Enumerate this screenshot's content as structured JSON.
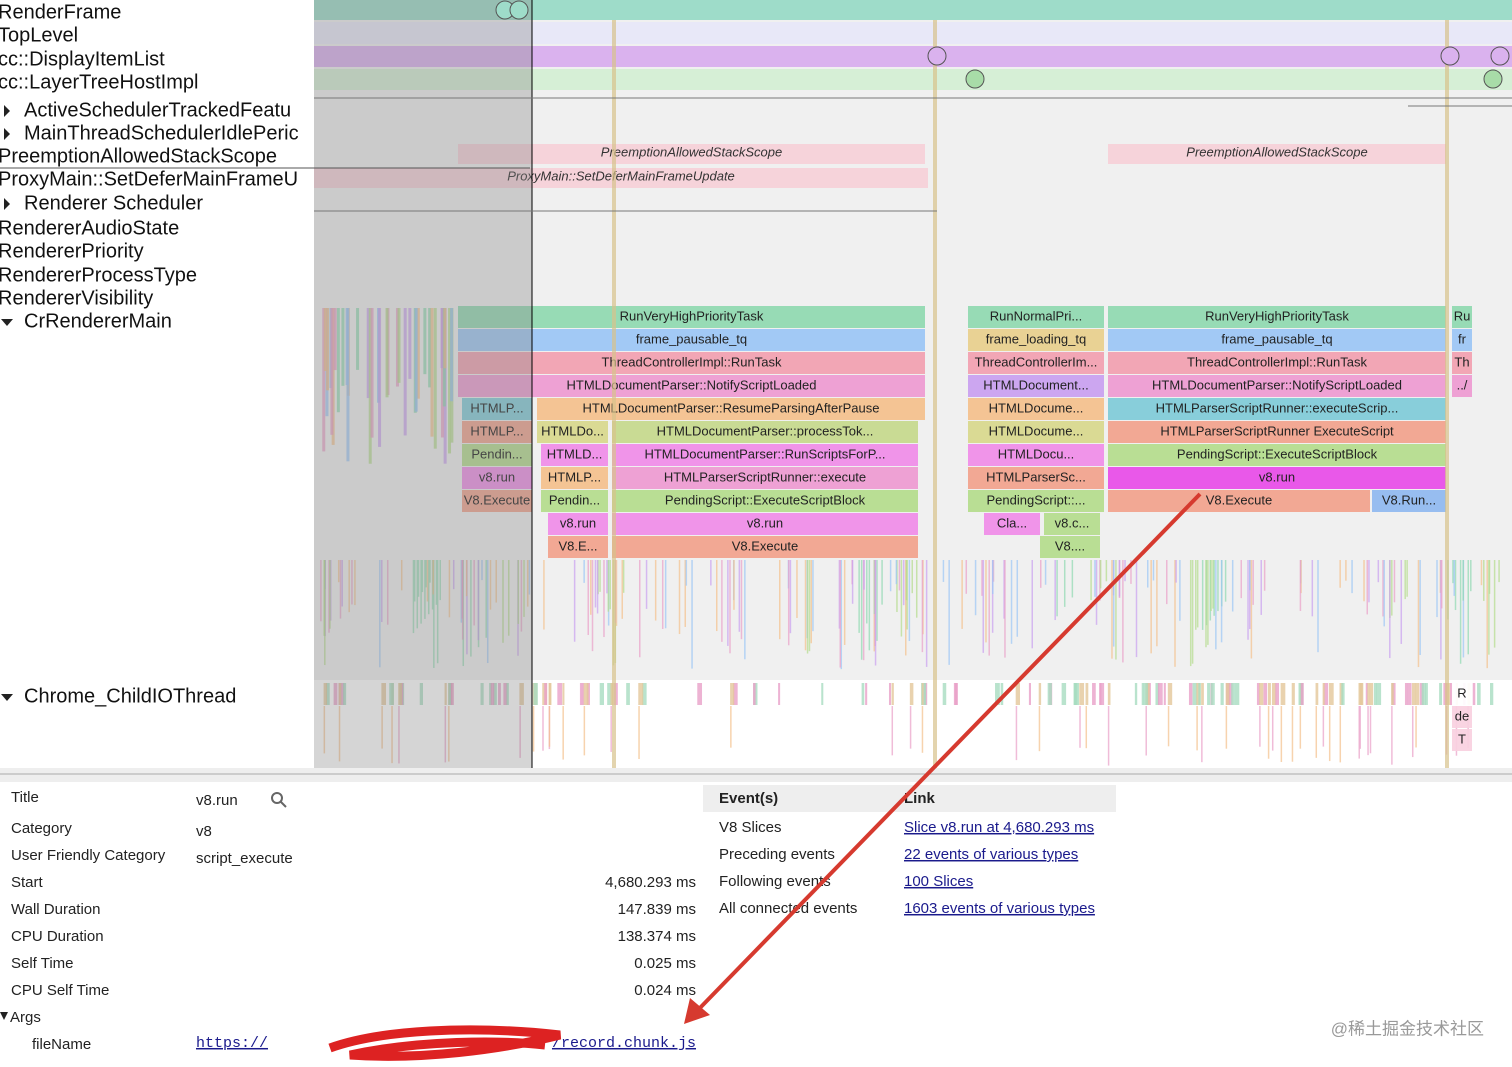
{
  "tracks": [
    "RenderFrame",
    "TopLevel",
    "cc::DisplayItemList",
    "cc::LayerTreeHostImpl",
    "ActiveSchedulerTrackedFeatu",
    "MainThreadSchedulerIdlePeric",
    "PreemptionAllowedStackScope",
    "ProxyMain::SetDeferMainFrameU",
    "Renderer Scheduler",
    "RendererAudioState",
    "RendererPriority",
    "RendererProcessType",
    "RendererVisibility",
    "CrRendererMain",
    "Chrome_ChildIOThread"
  ],
  "async_slices": [
    "PreemptionAllowedStackScope",
    "PreemptionAllowedStackScope",
    "ProxyMain::SetDeferMainFrameUpdate"
  ],
  "slices": [
    "RunVeryHighPriorityTask",
    "RunNormalPri...",
    "RunVeryHighPriorityTask",
    "Ru",
    "frame_pausable_tq",
    "frame_loading_tq",
    "frame_pausable_tq",
    "fr",
    "ThreadControllerImpl::RunTask",
    "ThreadControllerIm...",
    "ThreadControllerImpl::RunTask",
    "Th",
    "HTMLDocumentParser::NotifyScriptLoaded",
    "HTMLDocument...",
    "HTMLDocumentParser::NotifyScriptLoaded",
    "../",
    "HTMLP...",
    "HTMLDocumentParser::ResumeParsingAfterPause",
    "HTMLDocume...",
    "HTMLParserScriptRunner::executeScrip...",
    "HTMLP...",
    "HTMLDo...",
    "HTMLDocumentParser::processTok...",
    "HTMLDocume...",
    "HTMLParserScriptRunner ExecuteScript",
    "Pendin...",
    "HTMLD...",
    "HTMLDocumentParser::RunScriptsForP...",
    "HTMLDocu...",
    "PendingScript::ExecuteScriptBlock",
    "v8.run",
    "HTMLP...",
    "HTMLParserScriptRunner::execute",
    "HTMLParserSc...",
    "v8.run",
    "V8.Execute",
    "Pendin...",
    "PendingScript::ExecuteScriptBlock",
    "PendingScript::...",
    "V8.Execute",
    "V8.Run...",
    "v8.run",
    "v8.run",
    "Cla...",
    "v8.c...",
    "V8.E...",
    "V8.Execute",
    "V8....",
    "R",
    "de",
    "T"
  ],
  "details": {
    "rows": [
      {
        "key": "Title",
        "value": "v8.run"
      },
      {
        "key": "Category",
        "value": "v8"
      },
      {
        "key": "User Friendly Category",
        "value": "script_execute"
      },
      {
        "key": "Start",
        "value": "4,680.293 ms"
      },
      {
        "key": "Wall Duration",
        "value": "147.839 ms"
      },
      {
        "key": "CPU Duration",
        "value": "138.374 ms"
      },
      {
        "key": "Self Time",
        "value": "0.025 ms"
      },
      {
        "key": "CPU Self Time",
        "value": "0.024 ms"
      }
    ],
    "args": "Args",
    "file_key": "fileName",
    "file_url_start": "https://",
    "file_url_end": "/record.chunk.js"
  },
  "links": {
    "headers": [
      "Event(s)",
      "Link"
    ],
    "rows": [
      [
        "V8 Slices",
        "Slice v8.run at 4,680.293 ms"
      ],
      [
        "Preceding events",
        "22 events of various types"
      ],
      [
        "Following events",
        "100 Slices"
      ],
      [
        "All connected events",
        "1603 events of various types"
      ]
    ]
  },
  "watermark": "@稀土掘金技术社区"
}
